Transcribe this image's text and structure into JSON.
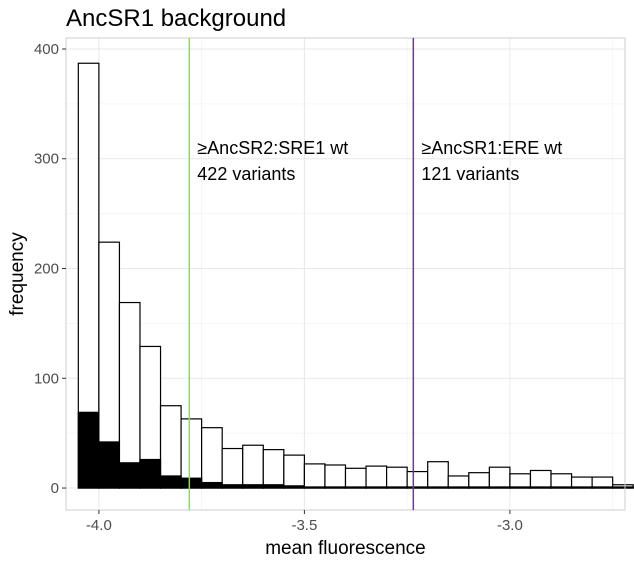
{
  "chart_data": {
    "type": "bar",
    "title": "AncSR1 background",
    "xlabel": "mean fluorescence",
    "ylabel": "frequency",
    "xlim": [
      -4.08,
      -2.72
    ],
    "ylim": [
      -20,
      410
    ],
    "x_ticks": [
      {
        "value": -4.0,
        "label": "-4.0"
      },
      {
        "value": -3.5,
        "label": "-3.5"
      },
      {
        "value": -3.0,
        "label": "-3.0"
      }
    ],
    "y_ticks": [
      {
        "value": 0,
        "label": "0"
      },
      {
        "value": 100,
        "label": "100"
      },
      {
        "value": 200,
        "label": "200"
      },
      {
        "value": 300,
        "label": "300"
      },
      {
        "value": 400,
        "label": "400"
      }
    ],
    "grid": true,
    "legend": "none",
    "bin_width": 0.05,
    "bin_starts": [
      -4.05,
      -4.0,
      -3.95,
      -3.9,
      -3.85,
      -3.8,
      -3.75,
      -3.7,
      -3.65,
      -3.6,
      -3.55,
      -3.5,
      -3.45,
      -3.4,
      -3.35,
      -3.3,
      -3.25,
      -3.2,
      -3.15,
      -3.1,
      -3.05,
      -3.0,
      -2.95,
      -2.9,
      -2.85,
      -2.8,
      -2.75
    ],
    "series": [
      {
        "values": [
          387,
          224,
          169,
          129,
          75,
          63,
          55,
          36,
          39,
          35,
          30,
          22,
          21,
          18,
          20,
          19,
          15,
          24,
          11,
          14,
          19,
          13,
          16,
          13,
          10,
          10,
          3
        ],
        "fill": "#ffffff",
        "stroke": "#000000"
      },
      {
        "values": [
          69,
          42,
          23,
          26,
          11,
          9,
          5,
          3,
          3,
          3,
          2,
          1,
          1,
          1,
          1,
          1,
          1,
          1,
          1,
          1,
          1,
          1,
          1,
          1,
          1,
          1,
          1
        ],
        "fill": "#000000",
        "stroke": "#000000"
      }
    ],
    "reference_lines": [
      {
        "x": -3.78,
        "color": "#88e33a",
        "label_line1": "≥AncSR2:SRE1 wt",
        "label_line2": "422 variants",
        "label_y": 310
      },
      {
        "x": -3.235,
        "color": "#6a34b4",
        "label_line1": "≥AncSR1:ERE wt",
        "label_line2": "121 variants",
        "label_y": 310
      }
    ]
  },
  "colors": {
    "panel_border": "#cccccc",
    "grid_major": "#e8e8e8",
    "grid_minor": "#f4f4f4"
  }
}
